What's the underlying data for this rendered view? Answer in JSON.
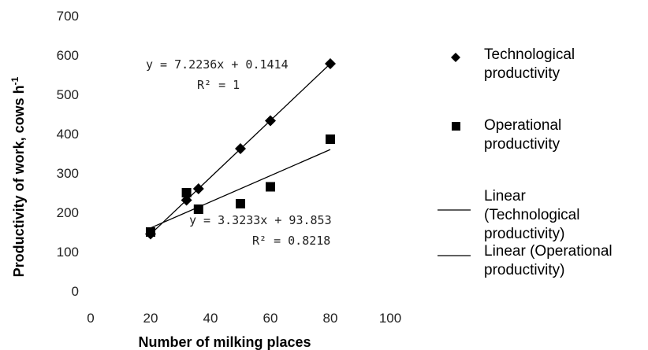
{
  "chart_data": {
    "type": "scatter",
    "xlabel": "Number of milking places",
    "ylabel": "Productivity of work, cows h",
    "ylabel_sup": "-1",
    "xlim": [
      0,
      100
    ],
    "ylim": [
      0,
      700
    ],
    "x_ticks": [
      "0",
      "20",
      "40",
      "60",
      "80",
      "100"
    ],
    "y_ticks": [
      "0",
      "100",
      "200",
      "300",
      "400",
      "500",
      "600",
      "700"
    ],
    "grid": false,
    "legend_position": "right",
    "series": [
      {
        "name": "Technological productivity",
        "marker": "diamond",
        "x": [
          20,
          32,
          36,
          50,
          60,
          80
        ],
        "y": [
          145,
          231,
          260,
          362,
          433,
          578
        ],
        "trendline": {
          "name": "Linear (Technological productivity)",
          "slope": 7.2236,
          "intercept": 0.1414,
          "equation": "y = 7.2236x + 0.1414",
          "r2": "R² = 1",
          "x_range": [
            20,
            80
          ]
        }
      },
      {
        "name": "Operational productivity",
        "marker": "square",
        "x": [
          20,
          32,
          36,
          50,
          60,
          80
        ],
        "y": [
          150,
          250,
          208,
          222,
          265,
          386
        ],
        "trendline": {
          "name": "Linear (Operational productivity)",
          "slope": 3.3233,
          "intercept": 93.853,
          "equation": "y = 3.3233x + 93.853",
          "r2": "R² = 0.8218",
          "x_range": [
            20,
            80
          ]
        }
      }
    ],
    "legend": [
      {
        "marker": "diamond",
        "line1": "Technological",
        "line2": "productivity",
        "line3": ""
      },
      {
        "marker": "square",
        "line1": "Operational",
        "line2": "productivity",
        "line3": ""
      },
      {
        "marker": "line",
        "line1": "Linear",
        "line2": "(Technological",
        "line3": "productivity)"
      },
      {
        "marker": "line",
        "line1": "Linear (Operational",
        "line2": "productivity)",
        "line3": ""
      }
    ],
    "colors": {
      "marker": "#000000",
      "line": "#000000"
    }
  }
}
